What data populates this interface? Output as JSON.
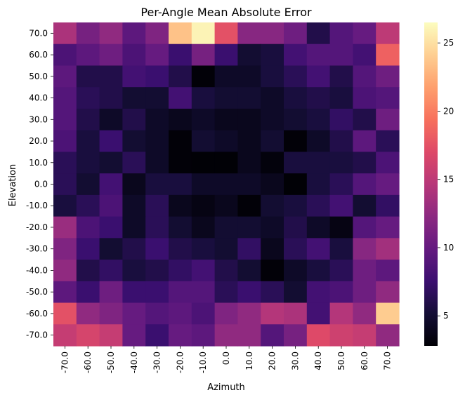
{
  "chart_data": {
    "type": "heatmap",
    "title": "Per-Angle Mean Absolute Error",
    "xlabel": "Azimuth",
    "ylabel": "Elevation",
    "x": [
      "-70.0",
      "-60.0",
      "-50.0",
      "-40.0",
      "-30.0",
      "-20.0",
      "-10.0",
      "0.0",
      "10.0",
      "20.0",
      "30.0",
      "40.0",
      "50.0",
      "60.0",
      "70.0"
    ],
    "y": [
      "70.0",
      "60.0",
      "50.0",
      "40.0",
      "30.0",
      "20.0",
      "10.0",
      "0.0",
      "-10.0",
      "-20.0",
      "-30.0",
      "-40.0",
      "-50.0",
      "-60.0",
      "-70.0"
    ],
    "values": [
      [
        14.0,
        11.0,
        12.5,
        9.5,
        11.5,
        23.5,
        26.0,
        17.5,
        12.0,
        12.0,
        10.5,
        6.0,
        9.0,
        10.0,
        15.0
      ],
      [
        8.5,
        9.5,
        10.5,
        8.5,
        10.0,
        7.5,
        11.0,
        7.5,
        5.0,
        5.5,
        8.0,
        9.0,
        9.0,
        8.0,
        18.5
      ],
      [
        9.5,
        6.0,
        6.0,
        8.0,
        7.5,
        6.0,
        3.0,
        4.5,
        4.5,
        5.5,
        6.5,
        8.0,
        6.0,
        9.0,
        10.5
      ],
      [
        9.0,
        6.5,
        6.0,
        5.0,
        5.0,
        8.0,
        5.5,
        5.0,
        5.0,
        4.5,
        5.5,
        6.0,
        5.5,
        8.5,
        9.0
      ],
      [
        9.0,
        6.0,
        4.5,
        6.0,
        4.5,
        4.0,
        4.5,
        4.0,
        4.0,
        4.5,
        5.0,
        5.5,
        7.0,
        6.0,
        10.5
      ],
      [
        8.5,
        5.5,
        7.5,
        5.0,
        4.5,
        3.0,
        5.0,
        4.5,
        4.0,
        5.0,
        3.0,
        4.5,
        6.0,
        9.5,
        6.5
      ],
      [
        6.5,
        5.5,
        5.0,
        6.5,
        4.5,
        3.0,
        2.9,
        2.9,
        4.0,
        3.2,
        5.5,
        5.5,
        5.5,
        6.0,
        8.5
      ],
      [
        6.5,
        5.0,
        8.0,
        4.0,
        5.5,
        5.5,
        4.5,
        4.5,
        4.5,
        4.0,
        2.9,
        5.5,
        6.5,
        9.0,
        10.0
      ],
      [
        5.5,
        6.5,
        8.5,
        4.5,
        6.5,
        4.0,
        3.5,
        4.0,
        3.0,
        5.0,
        5.5,
        6.5,
        8.0,
        5.0,
        7.0
      ],
      [
        13.0,
        8.5,
        7.5,
        4.5,
        6.5,
        5.0,
        4.0,
        5.0,
        5.0,
        4.5,
        6.0,
        4.5,
        3.5,
        9.0,
        10.0
      ],
      [
        11.5,
        7.5,
        5.0,
        6.0,
        7.5,
        6.0,
        5.5,
        5.0,
        7.0,
        4.0,
        6.5,
        8.0,
        5.5,
        12.0,
        13.5
      ],
      [
        12.5,
        6.0,
        7.0,
        5.5,
        6.0,
        7.0,
        8.0,
        6.0,
        5.0,
        3.0,
        4.5,
        5.5,
        6.5,
        10.5,
        9.5
      ],
      [
        9.5,
        7.5,
        10.5,
        7.5,
        7.5,
        9.0,
        9.0,
        6.5,
        7.5,
        6.5,
        5.0,
        8.0,
        8.5,
        10.5,
        12.5
      ],
      [
        17.5,
        12.5,
        11.5,
        10.0,
        9.0,
        9.5,
        8.5,
        11.5,
        12.5,
        14.5,
        14.0,
        8.0,
        14.5,
        12.5,
        24.0
      ],
      [
        15.5,
        16.5,
        15.5,
        10.0,
        7.5,
        10.0,
        9.5,
        12.5,
        12.5,
        9.0,
        11.0,
        17.0,
        16.0,
        15.5,
        12.5
      ]
    ],
    "colormap": "magma",
    "vmin": 2.8,
    "vmax": 26.5,
    "colorbar_ticks": [
      "5",
      "10",
      "15",
      "20",
      "25"
    ],
    "grid": false
  }
}
